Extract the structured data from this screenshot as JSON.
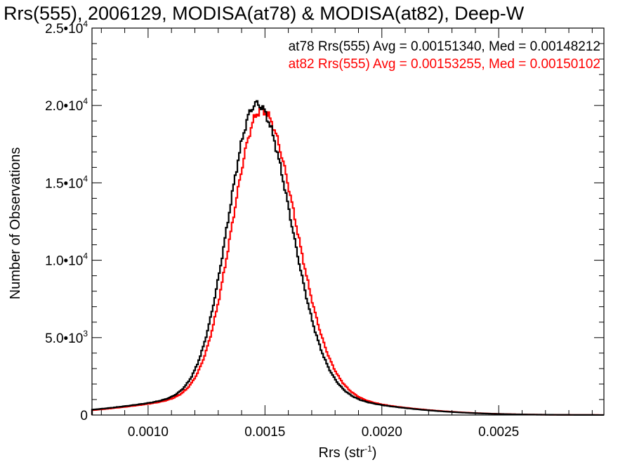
{
  "chart_data": {
    "type": "line",
    "step": true,
    "title": "Rrs(555), 2006129, MODISA(at78) & MODISA(at82), Deep-W",
    "xlabel": "Rrs (str",
    "xlabel_sup": "-1",
    "xlabel_close": ")",
    "ylabel": "Number of Observations",
    "xlim": [
      0.00076,
      0.00295
    ],
    "ylim": [
      0,
      25000
    ],
    "x_ticks": [
      {
        "value": 0.001,
        "label": "0.0010"
      },
      {
        "value": 0.0015,
        "label": "0.0015"
      },
      {
        "value": 0.002,
        "label": "0.0020"
      },
      {
        "value": 0.0025,
        "label": "0.0025"
      }
    ],
    "y_ticks": [
      {
        "value": 0,
        "mant": "0",
        "exp": ""
      },
      {
        "value": 5000,
        "mant": "5.0•10",
        "exp": "3"
      },
      {
        "value": 10000,
        "mant": "1.0•10",
        "exp": "4"
      },
      {
        "value": 15000,
        "mant": "1.5•10",
        "exp": "4"
      },
      {
        "value": 20000,
        "mant": "2.0•10",
        "exp": "4"
      },
      {
        "value": 25000,
        "mant": "2.5•10",
        "exp": "4"
      }
    ],
    "series": [
      {
        "name": "at78",
        "color": "#000000",
        "annotation": "at78 Rrs(555) Avg = 0.00151340, Med = 0.00148212",
        "peak_x": 0.001465,
        "peak_y": 20100,
        "sigma_left": 0.000122,
        "sigma_right": 0.000145,
        "tail_amp": 0.07,
        "tail_sigma": 0.00042
      },
      {
        "name": "at82",
        "color": "#ff0000",
        "annotation": "at82 Rrs(555) Avg = 0.00153255, Med = 0.00150102",
        "peak_x": 0.001485,
        "peak_y": 19700,
        "sigma_left": 0.000124,
        "sigma_right": 0.000147,
        "tail_amp": 0.07,
        "tail_sigma": 0.00042
      }
    ],
    "bin_width": 6.22e-06
  }
}
